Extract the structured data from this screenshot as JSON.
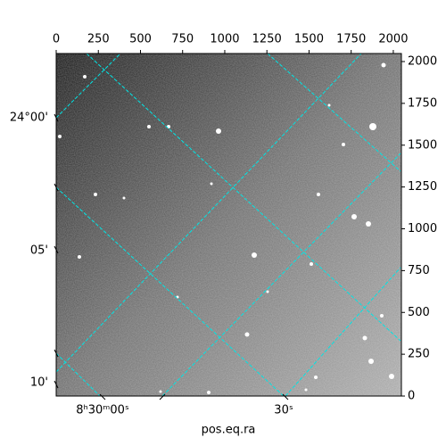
{
  "chart_data": {
    "type": "image",
    "xlabel": "pos.eq.ra",
    "xlim": [
      0,
      2048
    ],
    "xticks": [
      0,
      250,
      500,
      750,
      1000,
      1250,
      1500,
      1750,
      2000
    ],
    "ylim": [
      0,
      2048
    ],
    "yticks": [
      0,
      250,
      500,
      750,
      1000,
      1250,
      1500,
      1750,
      2000
    ],
    "wcs_yticks": [
      "24°00'",
      "05'",
      "10'"
    ],
    "wcs_xticks": [
      "8ʰ30ᵐ00ˢ",
      "30ˢ"
    ],
    "grid_color": "#00e5e5"
  }
}
